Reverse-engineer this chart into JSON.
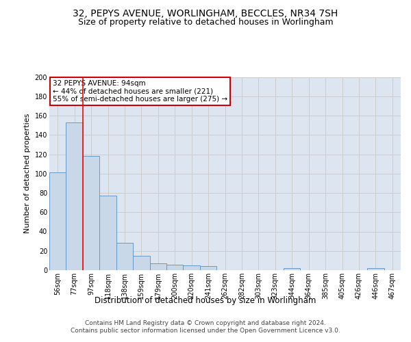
{
  "title": "32, PEPYS AVENUE, WORLINGHAM, BECCLES, NR34 7SH",
  "subtitle": "Size of property relative to detached houses in Worlingham",
  "xlabel": "Distribution of detached houses by size in Worlingham",
  "ylabel": "Number of detached properties",
  "categories": [
    "56sqm",
    "77sqm",
    "97sqm",
    "118sqm",
    "138sqm",
    "159sqm",
    "179sqm",
    "200sqm",
    "220sqm",
    "241sqm",
    "262sqm",
    "282sqm",
    "303sqm",
    "323sqm",
    "344sqm",
    "364sqm",
    "385sqm",
    "405sqm",
    "426sqm",
    "446sqm",
    "467sqm"
  ],
  "values": [
    101,
    153,
    118,
    77,
    28,
    15,
    7,
    6,
    5,
    4,
    0,
    0,
    0,
    0,
    2,
    0,
    0,
    0,
    0,
    2,
    0
  ],
  "bar_color": "#c8d8e8",
  "bar_edge_color": "#6699cc",
  "red_line_x": 1.5,
  "annotation_text": "32 PEPYS AVENUE: 94sqm\n← 44% of detached houses are smaller (221)\n55% of semi-detached houses are larger (275) →",
  "annotation_box_color": "#ffffff",
  "annotation_box_edge_color": "#cc0000",
  "ylim": [
    0,
    200
  ],
  "yticks": [
    0,
    20,
    40,
    60,
    80,
    100,
    120,
    140,
    160,
    180,
    200
  ],
  "grid_color": "#cccccc",
  "background_color": "#dde6f0",
  "footer_text": "Contains HM Land Registry data © Crown copyright and database right 2024.\nContains public sector information licensed under the Open Government Licence v3.0.",
  "title_fontsize": 10,
  "subtitle_fontsize": 9,
  "xlabel_fontsize": 8.5,
  "ylabel_fontsize": 8,
  "tick_fontsize": 7,
  "annotation_fontsize": 7.5,
  "footer_fontsize": 6.5
}
